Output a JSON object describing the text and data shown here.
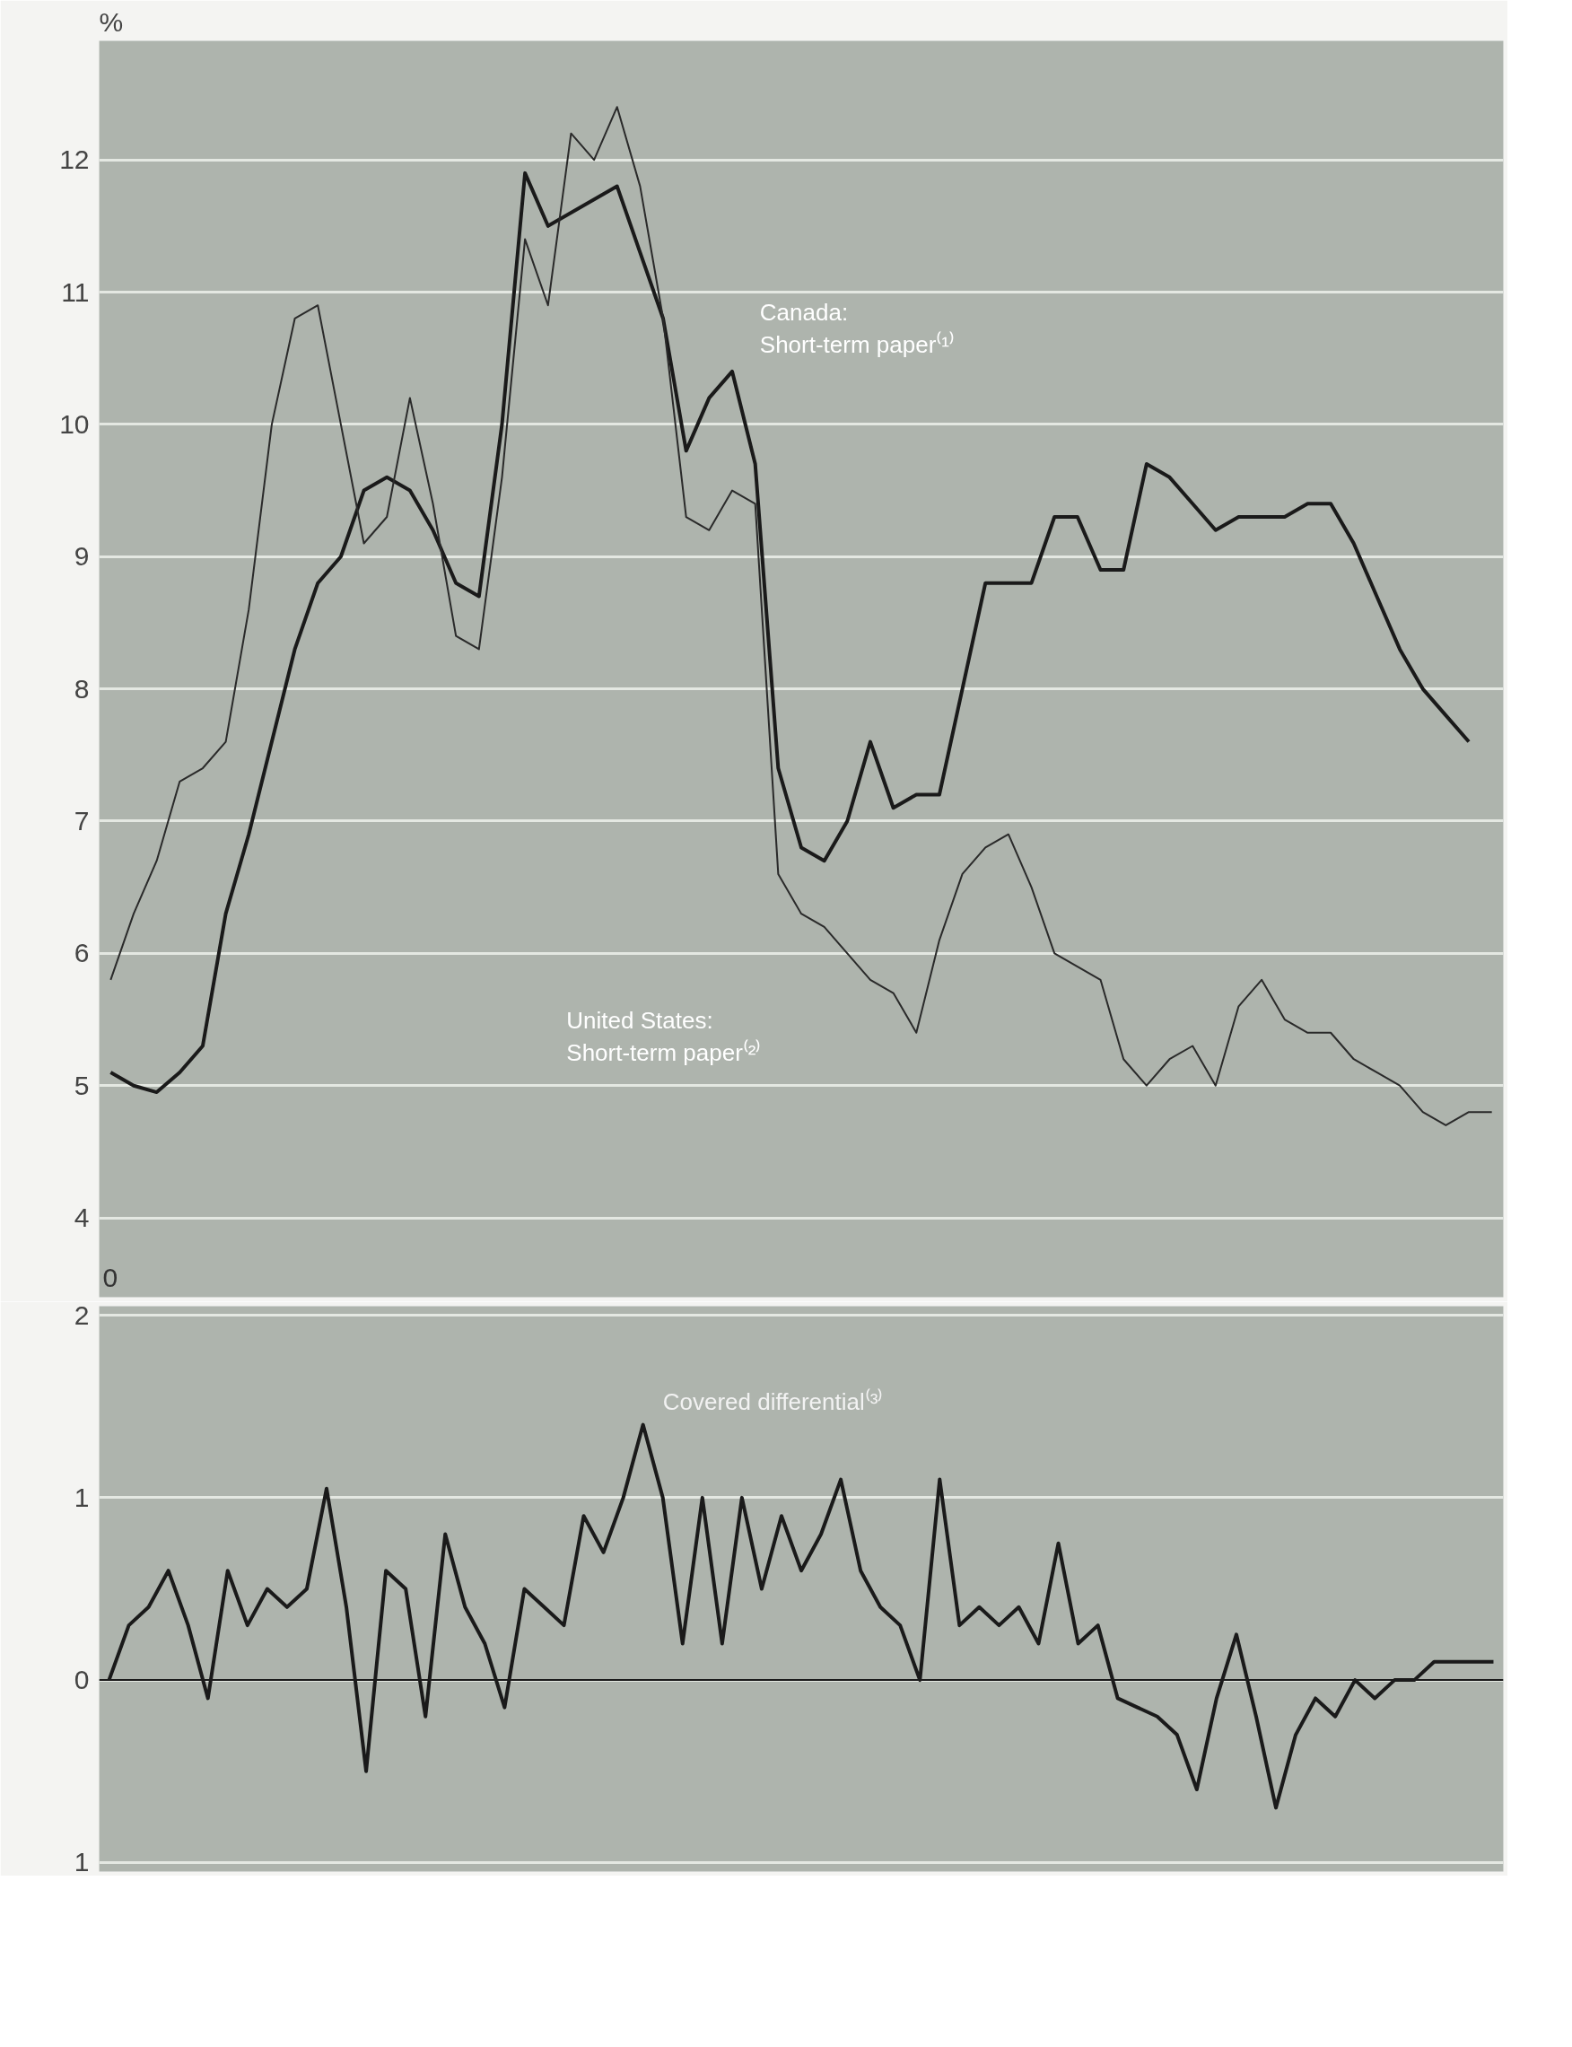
{
  "chart_data": [
    {
      "type": "line",
      "ylabel": "%",
      "categories": [
        null,
        null,
        null,
        null,
        null,
        null,
        null,
        null,
        null,
        null,
        null,
        null,
        null,
        null,
        null,
        null,
        null,
        null,
        null,
        null,
        null,
        null,
        null,
        null,
        null,
        null,
        null,
        null,
        null,
        null,
        null,
        null,
        null,
        null,
        null,
        null,
        null,
        null,
        null,
        null,
        null,
        null,
        null,
        null,
        null,
        null,
        null,
        null,
        null,
        null,
        null,
        null,
        null,
        null,
        null,
        null,
        null,
        null,
        null,
        null,
        null
      ],
      "series": [
        {
          "color": "#1a1a1a",
          "values": [
            5.1,
            5.0,
            4.95,
            5.1,
            5.3,
            6.3,
            6.9,
            7.6,
            8.3,
            8.8,
            9.0,
            9.5,
            9.6,
            9.5,
            9.2,
            8.8,
            8.7,
            10.0,
            11.9,
            11.5,
            11.6,
            11.7,
            11.8,
            11.3,
            10.8,
            9.8,
            10.2,
            10.4,
            9.7,
            7.4,
            6.8,
            6.7,
            7.0,
            7.6,
            7.1,
            7.2,
            7.2,
            8.0,
            8.8,
            8.8,
            8.8,
            9.3,
            9.3,
            8.9,
            8.9,
            9.7,
            9.6,
            9.4,
            9.2,
            9.3,
            9.3,
            9.3,
            9.4,
            9.4,
            9.1,
            8.7,
            8.3,
            8.0,
            7.8,
            7.6,
            null
          ]
        },
        {
          "color": "#2a2a2a",
          "values": [
            5.8,
            6.3,
            6.7,
            7.3,
            7.4,
            7.6,
            8.6,
            10.0,
            10.8,
            10.9,
            10.0,
            9.1,
            9.3,
            10.2,
            9.4,
            8.4,
            8.3,
            9.6,
            11.4,
            10.9,
            12.2,
            12.0,
            12.4,
            11.8,
            10.8,
            9.3,
            9.2,
            9.5,
            9.4,
            6.6,
            6.3,
            6.2,
            6.0,
            5.8,
            5.7,
            5.4,
            6.1,
            6.6,
            6.8,
            6.9,
            6.5,
            6.0,
            5.9,
            5.8,
            5.2,
            5.0,
            5.2,
            5.3,
            5.0,
            5.6,
            5.8,
            5.5,
            5.4,
            5.4,
            5.2,
            5.1,
            5.0,
            4.8,
            4.7,
            4.8,
            4.8
          ]
        }
      ],
      "ylim": [
        3.4,
        12.9
      ],
      "yticks": [
        4,
        5,
        6,
        7,
        8,
        9,
        10,
        11,
        12
      ],
      "grid": "y",
      "tick_labels": "y",
      "annotations": [
        "Canada:\nShort-term paper⁽¹⁾",
        "United States:\nShort-term paper⁽²⁾",
        "0"
      ]
    },
    {
      "type": "line",
      "categories": [
        null,
        null,
        null,
        null,
        null,
        null,
        null,
        null,
        null,
        null,
        null,
        null,
        null,
        null,
        null,
        null,
        null,
        null,
        null,
        null,
        null,
        null,
        null,
        null,
        null,
        null,
        null,
        null,
        null,
        null,
        null,
        null,
        null,
        null,
        null,
        null,
        null,
        null,
        null,
        null,
        null,
        null,
        null,
        null,
        null,
        null,
        null,
        null,
        null,
        null,
        null,
        null,
        null,
        null,
        null,
        null,
        null,
        null,
        null,
        null,
        null,
        null,
        null,
        null,
        null,
        null,
        null,
        null,
        null,
        null,
        null
      ],
      "series": [
        {
          "color": "#1a1a1a",
          "values": [
            0.0,
            0.3,
            0.4,
            0.6,
            0.3,
            -0.1,
            0.6,
            0.3,
            0.5,
            0.4,
            0.5,
            1.05,
            0.4,
            -0.5,
            0.6,
            0.5,
            -0.2,
            0.8,
            0.4,
            0.2,
            -0.15,
            0.5,
            0.4,
            0.3,
            0.9,
            0.7,
            1.0,
            1.4,
            1.0,
            0.2,
            1.0,
            0.2,
            1.0,
            0.5,
            0.9,
            0.6,
            0.8,
            1.1,
            0.6,
            0.4,
            0.3,
            0.0,
            1.1,
            0.3,
            0.4,
            0.3,
            0.4,
            0.2,
            0.75,
            0.2,
            0.3,
            -0.1,
            -0.15,
            -0.2,
            -0.3,
            -0.6,
            -0.1,
            0.25,
            -0.2,
            -0.7,
            -0.3,
            -0.1,
            -0.2,
            0.0,
            -0.1,
            0.0,
            0.0,
            0.1,
            0.1,
            0.1,
            0.1
          ]
        }
      ],
      "ylim": [
        -1.05,
        2.05
      ],
      "yticks": [
        {
          "value": -1,
          "label": "1"
        },
        0,
        1,
        2
      ],
      "grid": "y",
      "tick_labels": "y",
      "ref_lines": [
        {
          "axis": "y",
          "value": 0,
          "color": "#1a1a1a"
        }
      ],
      "annotations": [
        "Covered differential⁽³⁾"
      ]
    }
  ]
}
